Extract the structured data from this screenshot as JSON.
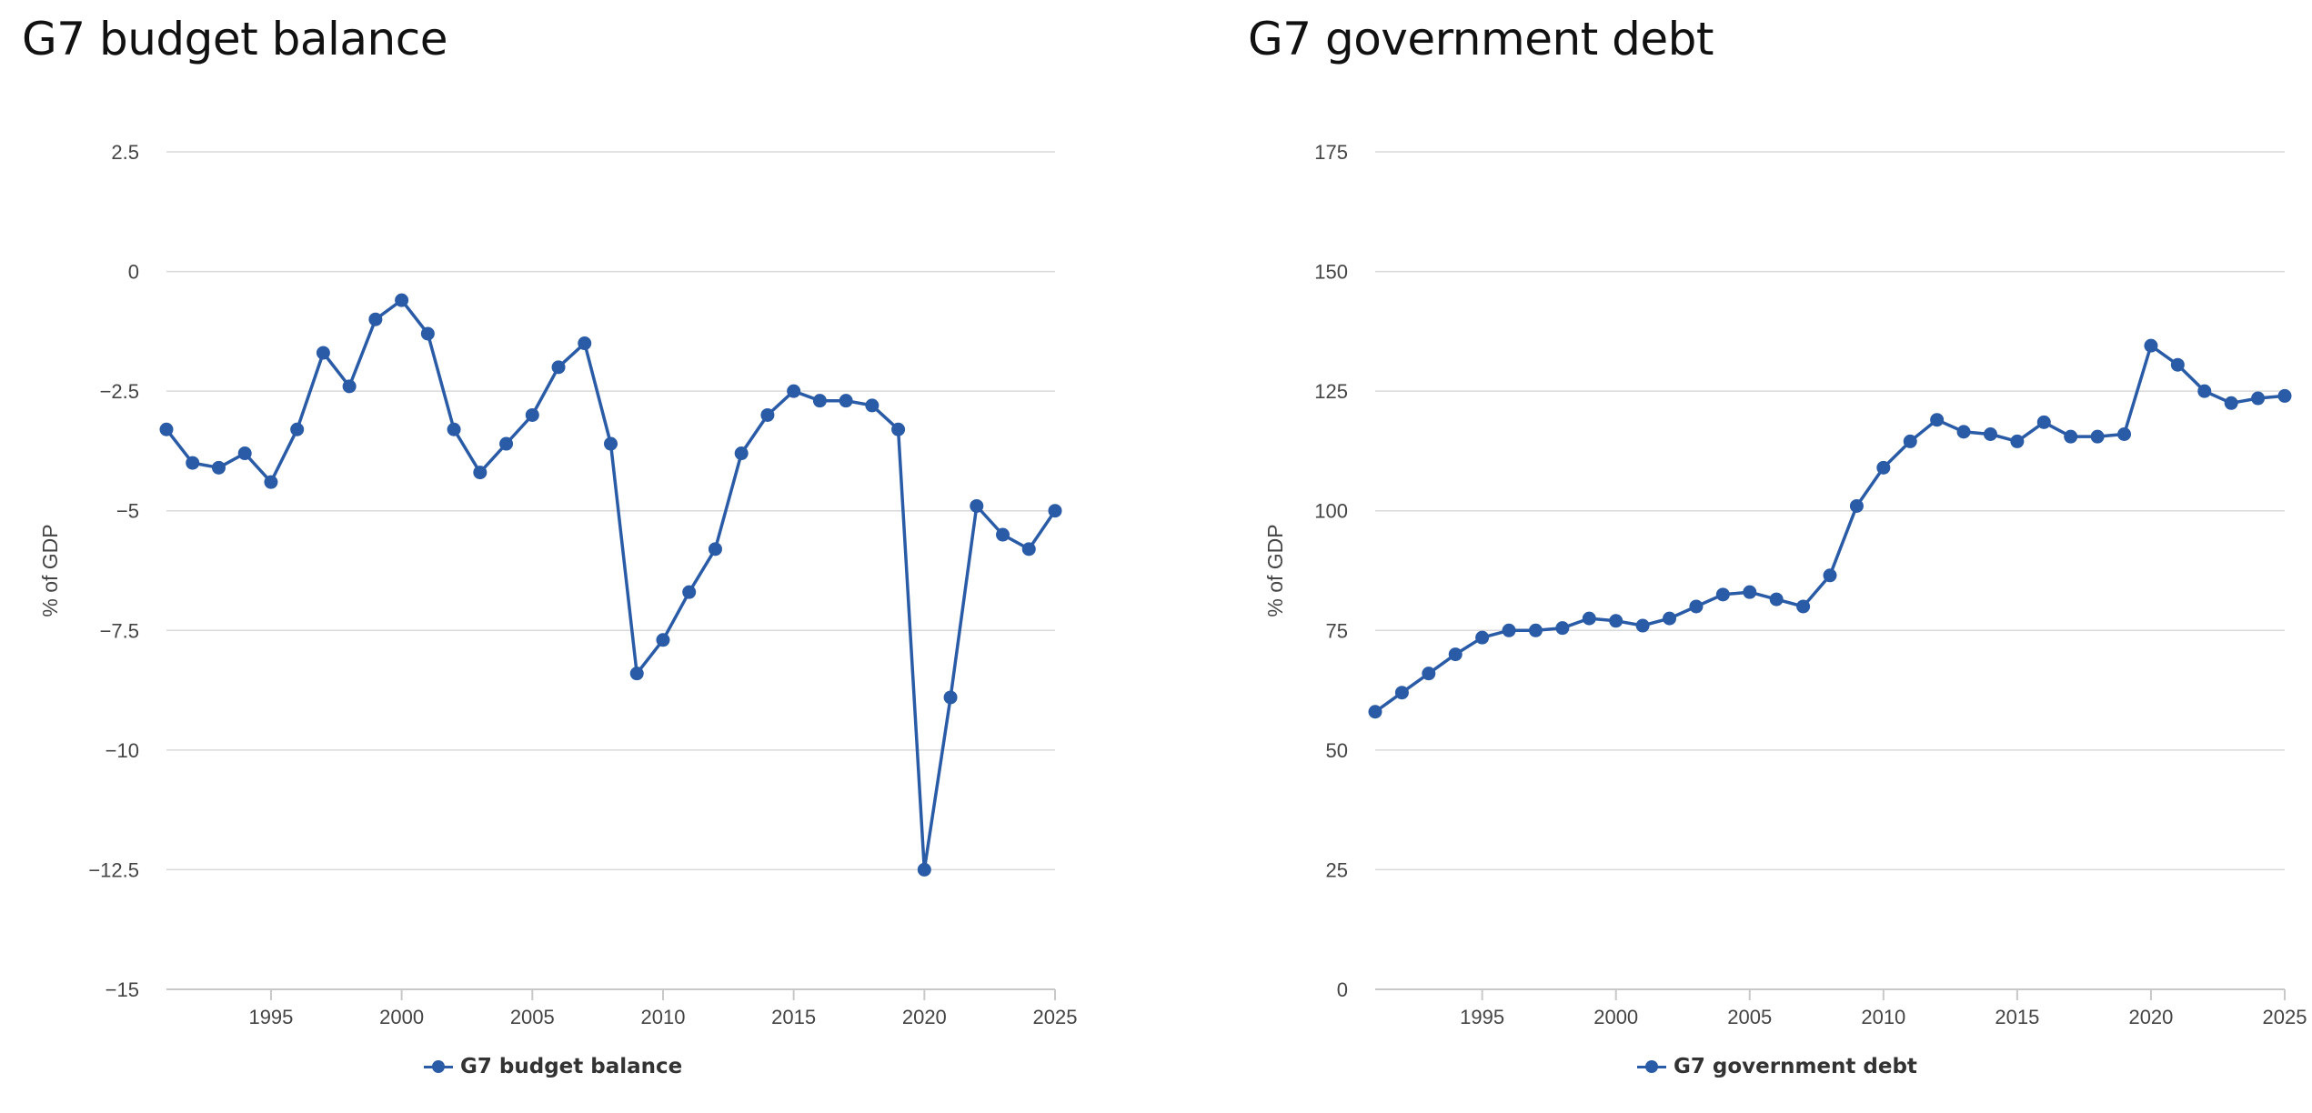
{
  "charts": [
    {
      "title": "G7 budget balance",
      "legend": "G7 budget balance"
    },
    {
      "title": "G7 government debt",
      "legend": "G7 government debt"
    }
  ],
  "chart_data": [
    {
      "type": "line",
      "title": "G7 budget balance",
      "xlabel": "",
      "ylabel": "% of GDP",
      "xlim": [
        1991,
        2025
      ],
      "ylim": [
        -15,
        2.5
      ],
      "yticks": [
        2.5,
        0,
        -2.5,
        -5,
        -7.5,
        -10,
        -12.5,
        -15
      ],
      "ytick_labels": [
        "2.5",
        "0",
        "−2.5",
        "−5",
        "−7.5",
        "−10",
        "−12.5",
        "−15"
      ],
      "xticks": [
        1995,
        2000,
        2005,
        2010,
        2015,
        2020,
        2025
      ],
      "xtick_labels": [
        "1995",
        "2000",
        "2005",
        "2010",
        "2015",
        "2020",
        "2025"
      ],
      "grid": true,
      "legend_position": "bottom-center",
      "color": "#2a5ba6",
      "x": [
        1991,
        1992,
        1993,
        1994,
        1995,
        1996,
        1997,
        1998,
        1999,
        2000,
        2001,
        2002,
        2003,
        2004,
        2005,
        2006,
        2007,
        2008,
        2009,
        2010,
        2011,
        2012,
        2013,
        2014,
        2015,
        2016,
        2017,
        2018,
        2019,
        2020,
        2021,
        2022,
        2023,
        2024,
        2025
      ],
      "series": [
        {
          "name": "G7 budget balance",
          "values": [
            -3.3,
            -4.0,
            -4.1,
            -3.8,
            -4.4,
            -3.3,
            -1.7,
            -2.4,
            -1.0,
            -0.6,
            -1.3,
            -3.3,
            -4.2,
            -3.6,
            -3.0,
            -2.0,
            -1.5,
            -3.6,
            -8.4,
            -7.7,
            -6.7,
            -5.8,
            -3.8,
            -3.0,
            -2.5,
            -2.7,
            -2.7,
            -2.8,
            -3.3,
            -12.5,
            -8.9,
            -4.9,
            -5.5,
            -5.8,
            -5.0
          ]
        }
      ]
    },
    {
      "type": "line",
      "title": "G7 government debt",
      "xlabel": "",
      "ylabel": "% of GDP",
      "xlim": [
        1991,
        2025
      ],
      "ylim": [
        0,
        175
      ],
      "yticks": [
        175,
        150,
        125,
        100,
        75,
        50,
        25,
        0
      ],
      "ytick_labels": [
        "175",
        "150",
        "125",
        "100",
        "75",
        "50",
        "25",
        "0"
      ],
      "xticks": [
        1995,
        2000,
        2005,
        2010,
        2015,
        2020,
        2025
      ],
      "xtick_labels": [
        "1995",
        "2000",
        "2005",
        "2010",
        "2015",
        "2020",
        "2025"
      ],
      "grid": true,
      "legend_position": "bottom-center",
      "color": "#2a5ba6",
      "x": [
        1991,
        1992,
        1993,
        1994,
        1995,
        1996,
        1997,
        1998,
        1999,
        2000,
        2001,
        2002,
        2003,
        2004,
        2005,
        2006,
        2007,
        2008,
        2009,
        2010,
        2011,
        2012,
        2013,
        2014,
        2015,
        2016,
        2017,
        2018,
        2019,
        2020,
        2021,
        2022,
        2023,
        2024,
        2025
      ],
      "series": [
        {
          "name": "G7 government debt",
          "values": [
            58,
            62,
            66,
            70,
            73.5,
            75,
            75,
            75.5,
            77.5,
            77,
            76,
            77.5,
            80,
            82.5,
            83,
            81.5,
            80,
            86.5,
            101,
            109,
            114.5,
            119,
            116.5,
            116,
            114.5,
            118.5,
            115.5,
            115.5,
            116,
            134.5,
            130.5,
            125,
            122.5,
            123.5,
            124
          ]
        }
      ]
    }
  ]
}
